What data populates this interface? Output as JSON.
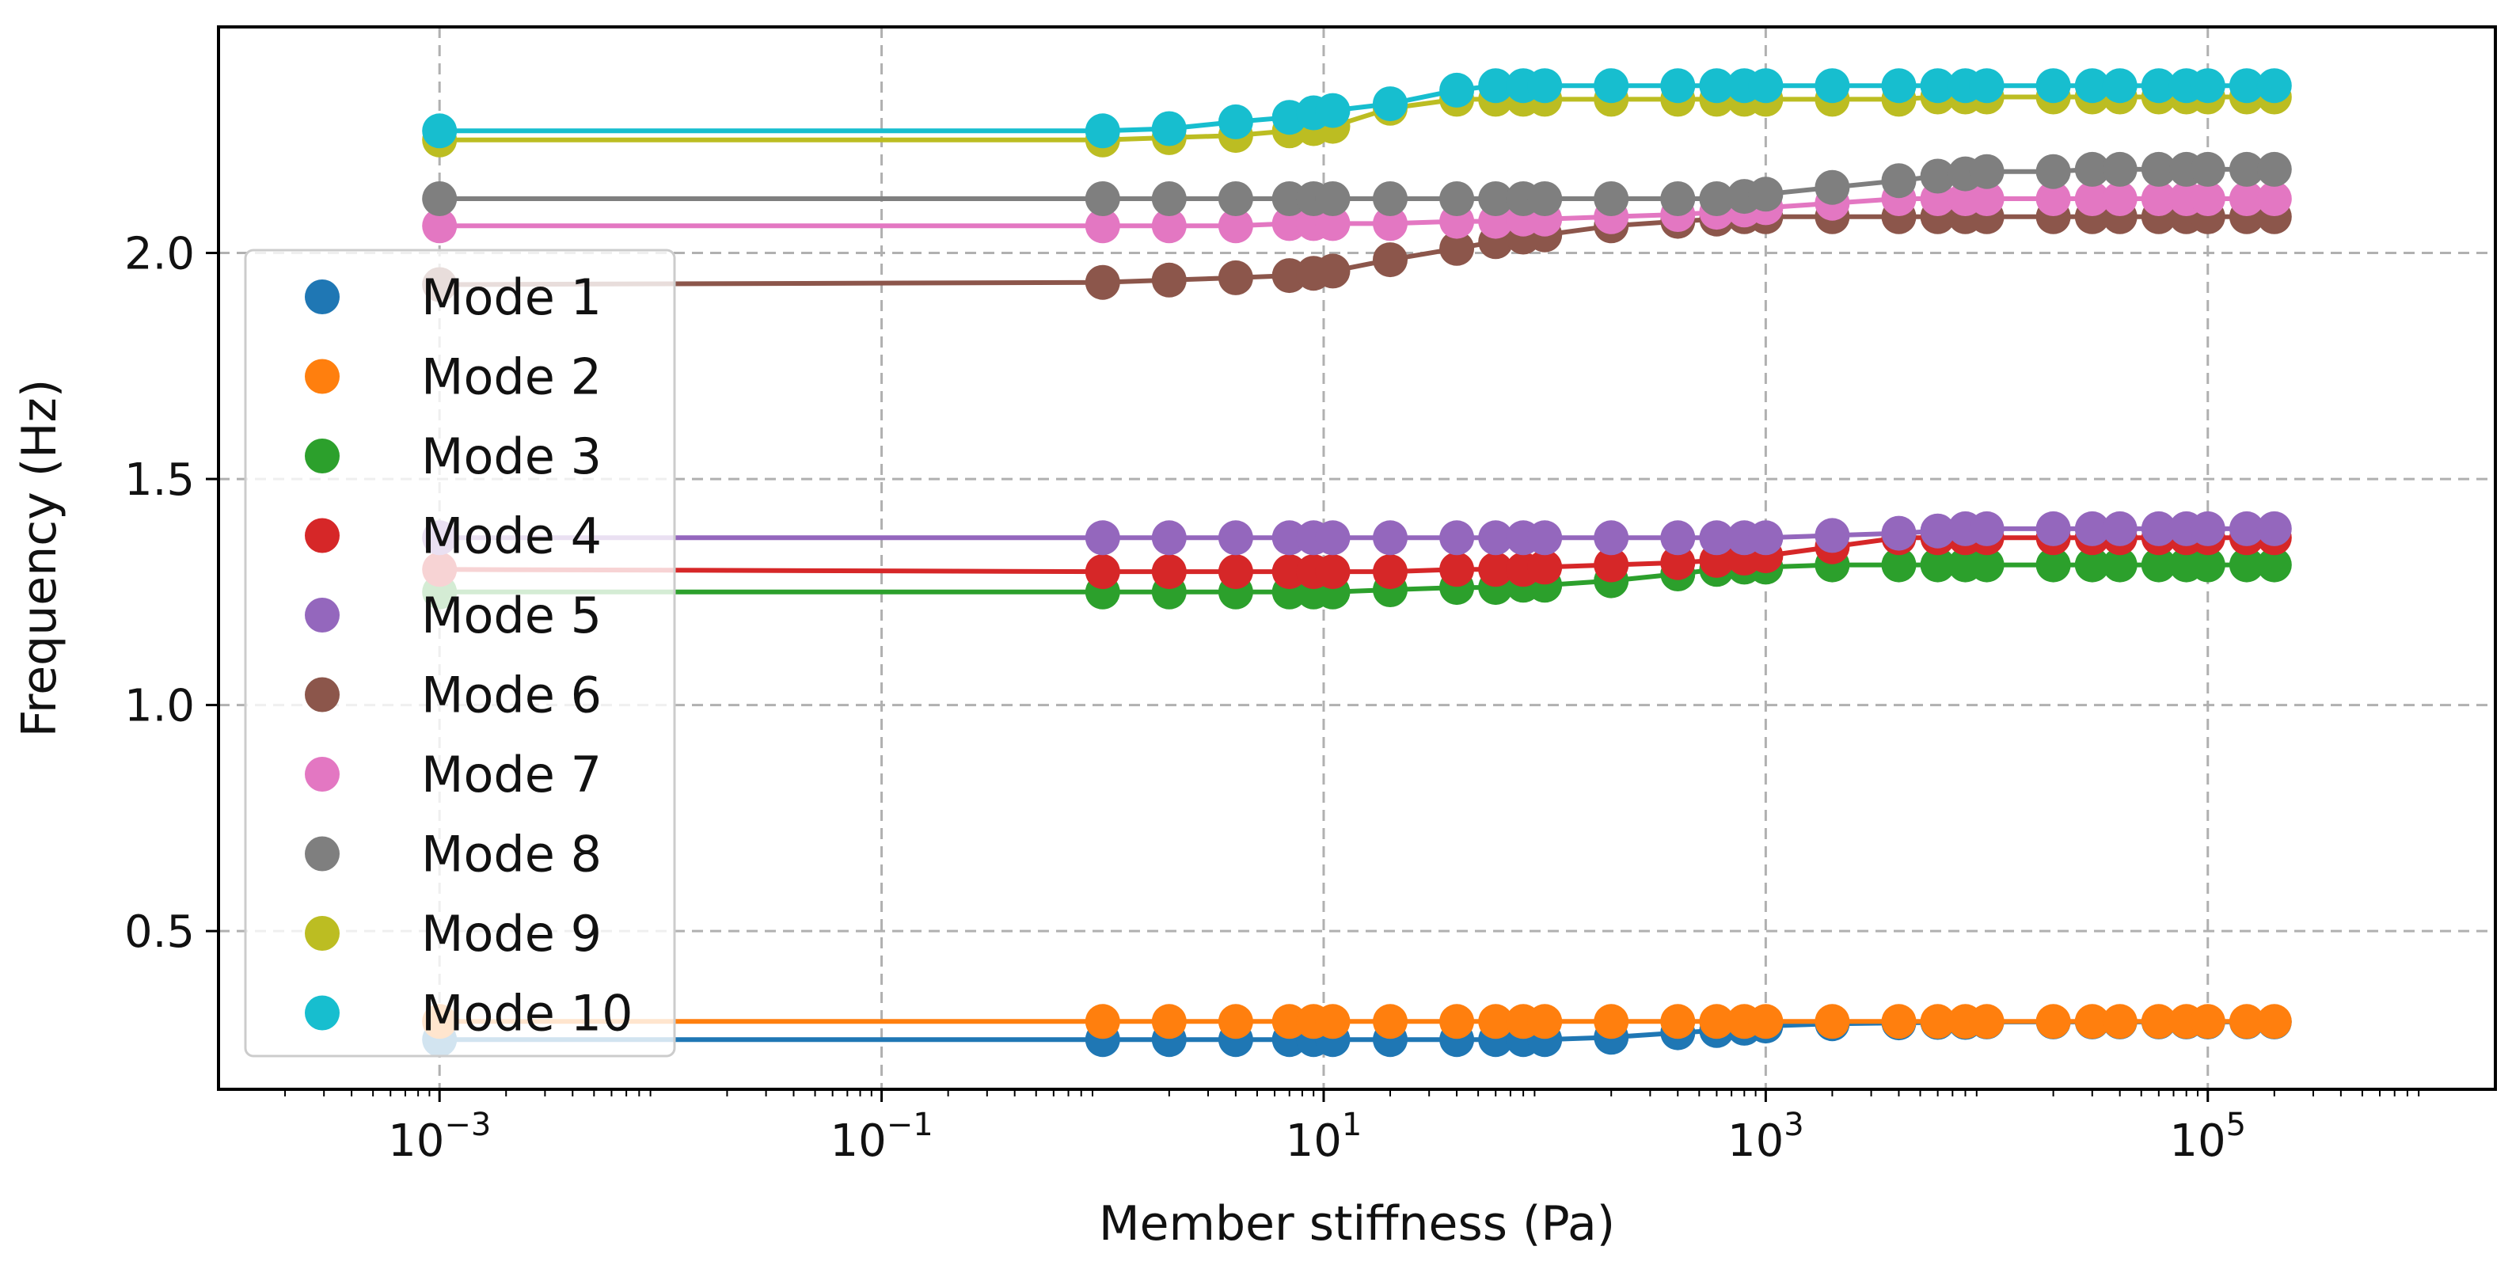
{
  "chart_data": {
    "type": "line",
    "xlabel": "Member stiffness (Pa)",
    "ylabel": "Frequency (Hz)",
    "x_scale": "log",
    "xlim": [
      0.0001,
      2000000
    ],
    "ylim": [
      0.15,
      2.5
    ],
    "x_ticks": [
      {
        "value": 0.001,
        "base": "10",
        "exp": "−3"
      },
      {
        "value": 0.1,
        "base": "10",
        "exp": "−1"
      },
      {
        "value": 10,
        "base": "10",
        "exp": "1"
      },
      {
        "value": 1000,
        "base": "10",
        "exp": "3"
      },
      {
        "value": 100000,
        "base": "10",
        "exp": "5"
      }
    ],
    "y_ticks": [
      {
        "value": 0.5,
        "label": "0.5"
      },
      {
        "value": 1.0,
        "label": "1.0"
      },
      {
        "value": 1.5,
        "label": "1.5"
      },
      {
        "value": 2.0,
        "label": "2.0"
      }
    ],
    "grid": true,
    "legend_position": "left",
    "x": [
      0.001,
      1,
      2,
      4,
      7,
      9,
      11,
      20,
      40,
      60,
      80,
      100,
      200,
      400,
      600,
      800,
      1000,
      2000,
      4000,
      6000,
      8000,
      10000,
      20000,
      30000,
      40000,
      60000,
      80000,
      100000,
      150000,
      200000
    ],
    "series": [
      {
        "name": "Mode 1",
        "color": "#1f77b4",
        "values": [
          0.26,
          0.26,
          0.26,
          0.26,
          0.26,
          0.26,
          0.26,
          0.26,
          0.26,
          0.26,
          0.26,
          0.26,
          0.265,
          0.275,
          0.28,
          0.285,
          0.29,
          0.295,
          0.297,
          0.298,
          0.298,
          0.299,
          0.299,
          0.299,
          0.299,
          0.299,
          0.299,
          0.299,
          0.299,
          0.299
        ]
      },
      {
        "name": "Mode 2",
        "color": "#ff7f0e",
        "values": [
          0.3,
          0.3,
          0.3,
          0.3,
          0.3,
          0.3,
          0.3,
          0.3,
          0.3,
          0.3,
          0.3,
          0.3,
          0.3,
          0.3,
          0.3,
          0.3,
          0.3,
          0.3,
          0.3,
          0.3,
          0.3,
          0.3,
          0.3,
          0.3,
          0.3,
          0.3,
          0.3,
          0.3,
          0.3,
          0.3
        ]
      },
      {
        "name": "Mode 3",
        "color": "#2ca02c",
        "values": [
          1.25,
          1.25,
          1.25,
          1.25,
          1.25,
          1.25,
          1.25,
          1.255,
          1.26,
          1.26,
          1.265,
          1.265,
          1.275,
          1.29,
          1.3,
          1.305,
          1.305,
          1.31,
          1.31,
          1.31,
          1.31,
          1.31,
          1.31,
          1.31,
          1.31,
          1.31,
          1.31,
          1.31,
          1.31,
          1.31
        ]
      },
      {
        "name": "Mode 4",
        "color": "#d62728",
        "values": [
          1.3,
          1.295,
          1.295,
          1.295,
          1.295,
          1.295,
          1.295,
          1.295,
          1.3,
          1.3,
          1.3,
          1.305,
          1.31,
          1.315,
          1.32,
          1.325,
          1.33,
          1.35,
          1.37,
          1.37,
          1.37,
          1.37,
          1.37,
          1.37,
          1.37,
          1.37,
          1.37,
          1.37,
          1.37,
          1.37
        ]
      },
      {
        "name": "Mode 5",
        "color": "#9467bd",
        "values": [
          1.37,
          1.37,
          1.37,
          1.37,
          1.37,
          1.37,
          1.37,
          1.37,
          1.37,
          1.37,
          1.37,
          1.37,
          1.37,
          1.37,
          1.37,
          1.37,
          1.37,
          1.375,
          1.38,
          1.385,
          1.39,
          1.39,
          1.39,
          1.39,
          1.39,
          1.39,
          1.39,
          1.39,
          1.39,
          1.39
        ]
      },
      {
        "name": "Mode 6",
        "color": "#8c564b",
        "values": [
          1.93,
          1.935,
          1.94,
          1.945,
          1.95,
          1.955,
          1.96,
          1.985,
          2.01,
          2.025,
          2.035,
          2.04,
          2.06,
          2.07,
          2.075,
          2.08,
          2.08,
          2.08,
          2.08,
          2.08,
          2.08,
          2.08,
          2.08,
          2.08,
          2.08,
          2.08,
          2.08,
          2.08,
          2.08,
          2.08
        ]
      },
      {
        "name": "Mode 7",
        "color": "#e377c2",
        "values": [
          2.06,
          2.06,
          2.06,
          2.06,
          2.065,
          2.065,
          2.065,
          2.065,
          2.07,
          2.07,
          2.075,
          2.075,
          2.08,
          2.085,
          2.09,
          2.095,
          2.1,
          2.11,
          2.12,
          2.12,
          2.12,
          2.12,
          2.12,
          2.12,
          2.12,
          2.12,
          2.12,
          2.12,
          2.12,
          2.12
        ]
      },
      {
        "name": "Mode 8",
        "color": "#7f7f7f",
        "values": [
          2.12,
          2.12,
          2.12,
          2.12,
          2.12,
          2.12,
          2.12,
          2.12,
          2.12,
          2.12,
          2.12,
          2.12,
          2.12,
          2.12,
          2.12,
          2.125,
          2.13,
          2.145,
          2.16,
          2.17,
          2.175,
          2.18,
          2.18,
          2.185,
          2.185,
          2.185,
          2.185,
          2.185,
          2.185,
          2.185
        ]
      },
      {
        "name": "Mode 9",
        "color": "#bcbd22",
        "values": [
          2.25,
          2.25,
          2.255,
          2.26,
          2.27,
          2.275,
          2.28,
          2.32,
          2.34,
          2.34,
          2.34,
          2.34,
          2.34,
          2.34,
          2.34,
          2.34,
          2.34,
          2.34,
          2.34,
          2.345,
          2.345,
          2.345,
          2.345,
          2.345,
          2.345,
          2.345,
          2.345,
          2.345,
          2.345,
          2.345
        ]
      },
      {
        "name": "Mode 10",
        "color": "#17becf",
        "values": [
          2.27,
          2.27,
          2.275,
          2.29,
          2.3,
          2.31,
          2.315,
          2.33,
          2.36,
          2.37,
          2.37,
          2.37,
          2.37,
          2.37,
          2.37,
          2.37,
          2.37,
          2.37,
          2.37,
          2.37,
          2.37,
          2.37,
          2.37,
          2.37,
          2.37,
          2.37,
          2.37,
          2.37,
          2.37,
          2.37
        ]
      }
    ]
  }
}
